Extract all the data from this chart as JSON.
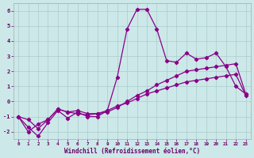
{
  "title": "",
  "xlabel": "Windchill (Refroidissement éolien,°C)",
  "ylabel": "",
  "background_color": "#cce8e8",
  "grid_color": "#aacccc",
  "line_color": "#880088",
  "xlim": [
    -0.5,
    23.5
  ],
  "ylim": [
    -2.5,
    6.5
  ],
  "yticks": [
    -2,
    -1,
    0,
    1,
    2,
    3,
    4,
    5,
    6
  ],
  "xticks": [
    0,
    1,
    2,
    3,
    4,
    5,
    6,
    7,
    8,
    9,
    10,
    11,
    12,
    13,
    14,
    15,
    16,
    17,
    18,
    19,
    20,
    21,
    22,
    23
  ],
  "series1_x": [
    0,
    1,
    2,
    3,
    4,
    5,
    6,
    7,
    8,
    9,
    10,
    11,
    12,
    13,
    14,
    15,
    16,
    17,
    18,
    19,
    20,
    21,
    22,
    23
  ],
  "series1_y": [
    -1.0,
    -1.7,
    -2.3,
    -1.4,
    -0.6,
    -1.1,
    -0.7,
    -1.0,
    -1.0,
    -0.6,
    1.6,
    4.8,
    6.1,
    6.1,
    4.8,
    2.7,
    2.6,
    3.2,
    2.8,
    2.9,
    3.2,
    2.3,
    1.0,
    0.5
  ],
  "series2_x": [
    0,
    1,
    2,
    3,
    4,
    5,
    6,
    7,
    8,
    9,
    10,
    11,
    12,
    13,
    14,
    15,
    16,
    17,
    18,
    19,
    20,
    21,
    22,
    23
  ],
  "series2_y": [
    -1.0,
    -2.0,
    -1.5,
    -1.2,
    -0.5,
    -0.7,
    -0.8,
    -0.9,
    -0.8,
    -0.7,
    -0.4,
    0.0,
    0.4,
    0.7,
    1.1,
    1.4,
    1.7,
    2.0,
    2.1,
    2.2,
    2.3,
    2.4,
    2.5,
    0.5
  ],
  "series3_x": [
    0,
    1,
    2,
    3,
    4,
    5,
    6,
    7,
    8,
    9,
    10,
    11,
    12,
    13,
    14,
    15,
    16,
    17,
    18,
    19,
    20,
    21,
    22,
    23
  ],
  "series3_y": [
    -1.0,
    -1.2,
    -1.8,
    -1.2,
    -0.5,
    -0.7,
    -0.6,
    -0.8,
    -0.8,
    -0.6,
    -0.3,
    -0.1,
    0.2,
    0.5,
    0.7,
    0.9,
    1.1,
    1.3,
    1.4,
    1.5,
    1.6,
    1.7,
    1.8,
    0.4
  ]
}
